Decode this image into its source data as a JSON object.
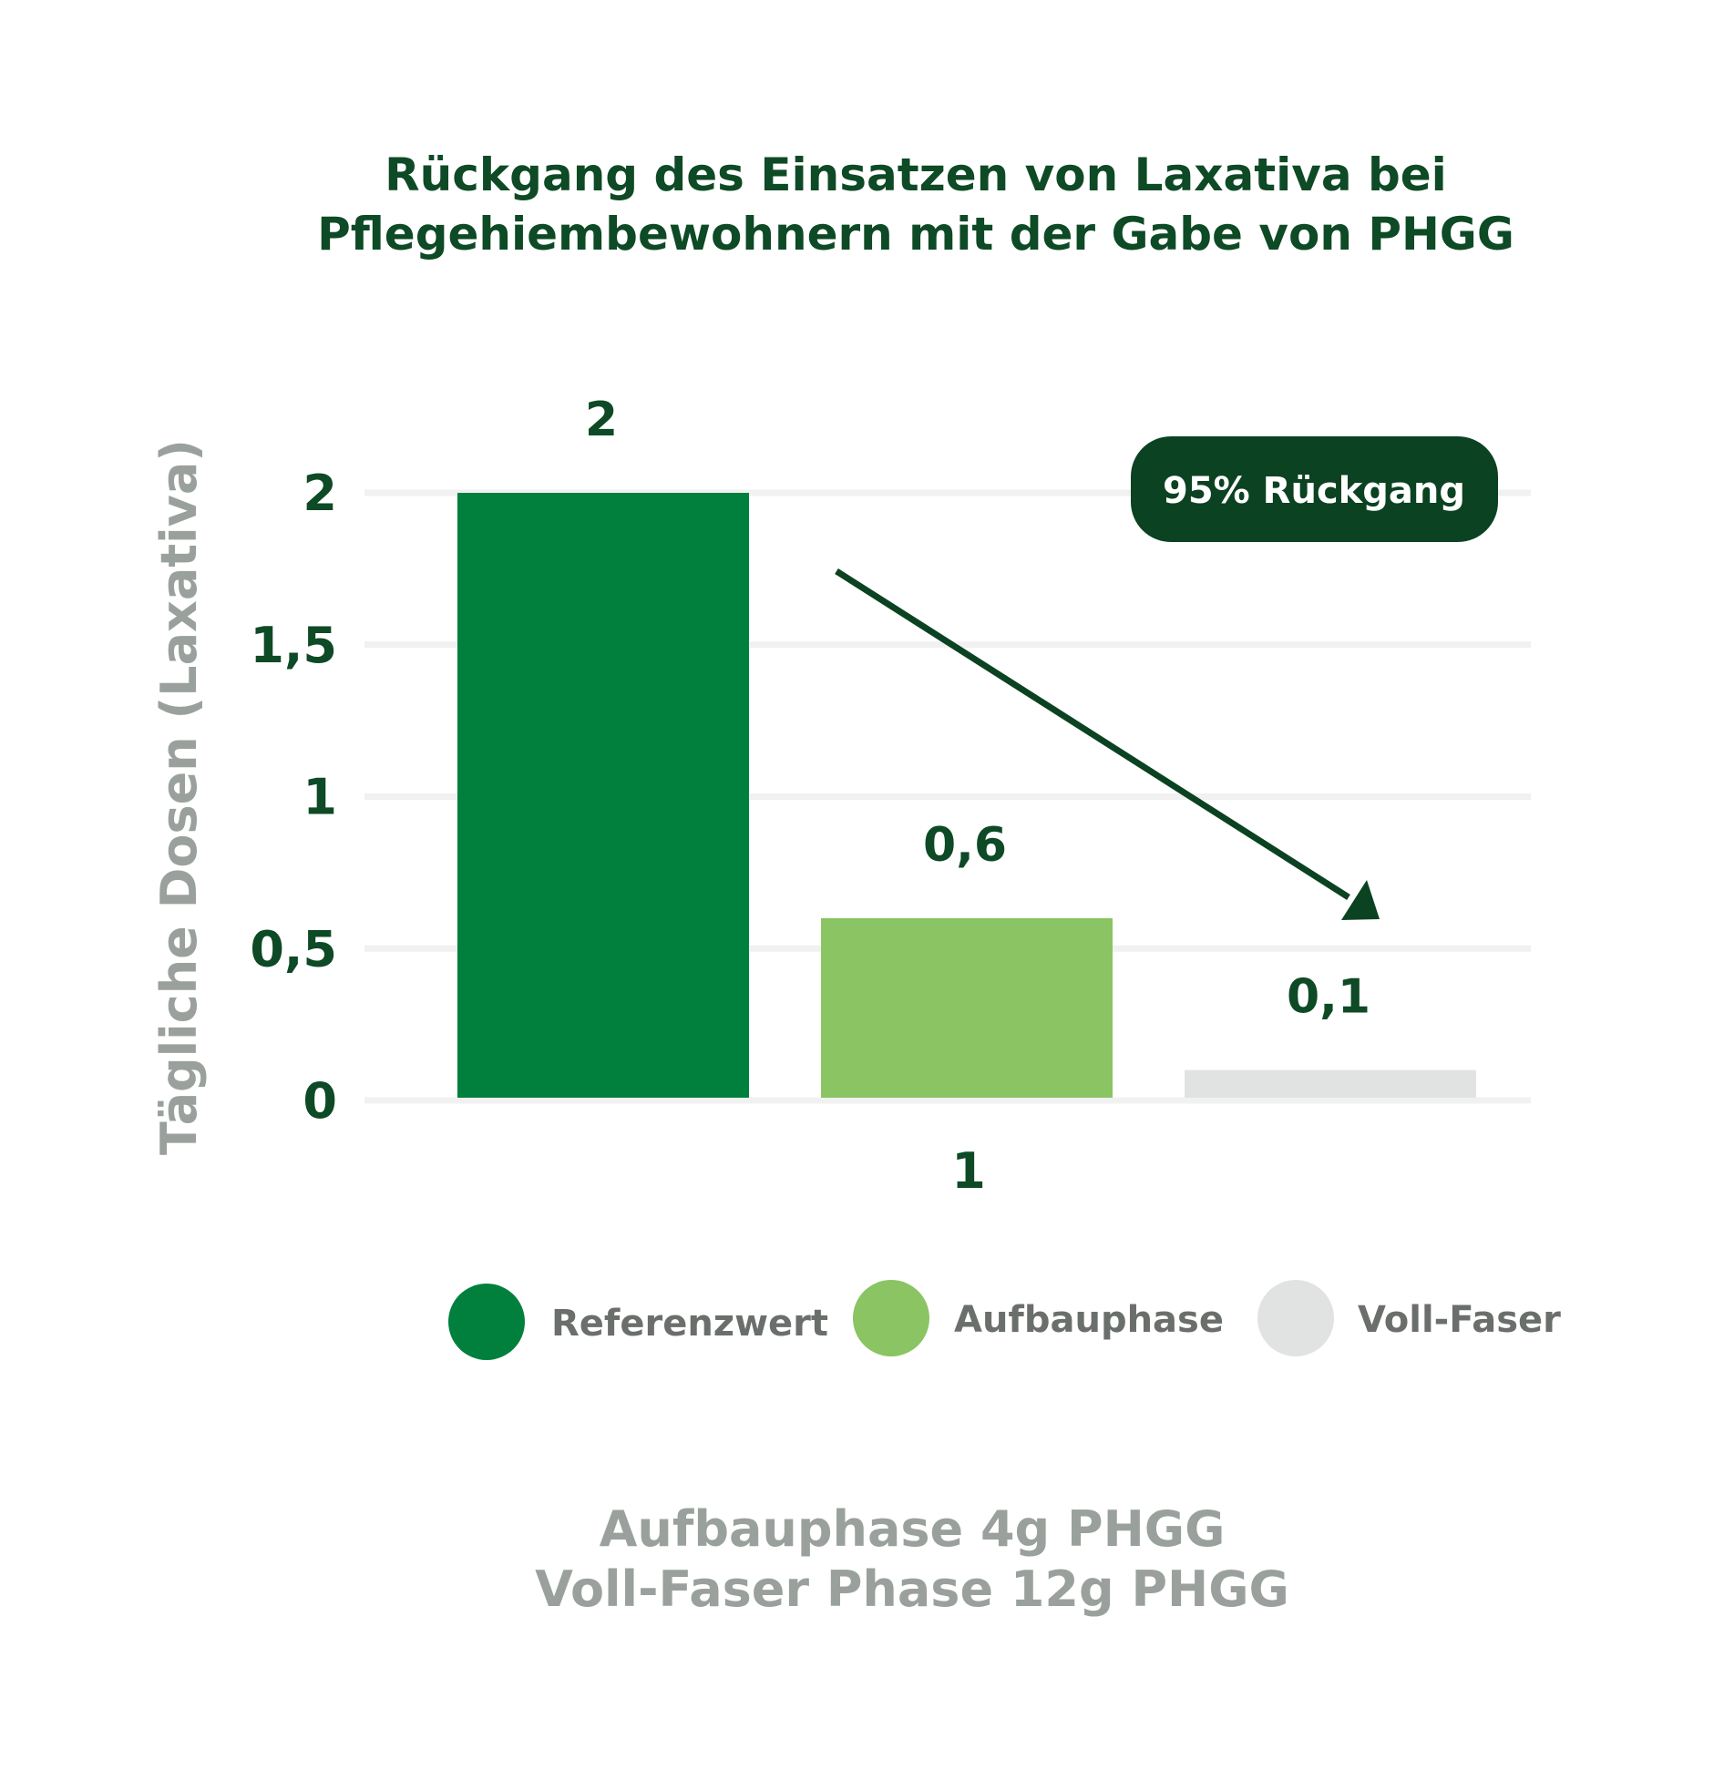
{
  "chart_data": {
    "type": "bar",
    "title_lines": [
      "Rückgang des Einsatzen von Laxativa bei",
      "Pflegehiembewohnern mit der Gabe von PHGG"
    ],
    "ylabel": "Tägliche Dosen (Laxativa)",
    "xlabel": "",
    "categories": [
      "1"
    ],
    "ylim": [
      0,
      2
    ],
    "y_ticks": [
      0,
      0.5,
      1,
      1.5,
      2
    ],
    "y_tick_labels": [
      "0",
      "0,5",
      "1",
      "1,5",
      "2"
    ],
    "grid": true,
    "series": [
      {
        "name": "Referenzwert",
        "values": [
          2
        ],
        "value_label": "2",
        "color": "#00803c"
      },
      {
        "name": "Aufbauphase",
        "values": [
          0.6
        ],
        "value_label": "0,6",
        "color": "#8ac463"
      },
      {
        "name": "Voll-Faser",
        "values": [
          0.1
        ],
        "value_label": "0,1",
        "color": "#e1e3e2"
      }
    ],
    "legend_position": "bottom",
    "annotation": {
      "text": "95% Rückgang",
      "badge_color": "#0b4222",
      "arrow": "down-right from Referenzwert toward Voll-Faser"
    },
    "footnote_lines": [
      "Aufbauphase 4g PHGG",
      "Voll-Faser Phase 12g PHGG"
    ]
  },
  "colors": {
    "title": "#0d4a25",
    "axis_text": "#0d4a25",
    "ylabel": "#9aa19c",
    "legend_text": "#6b6f6c",
    "footnote": "#9aa19c",
    "gridline": "#f1f1f1",
    "arrow": "#0b4222"
  }
}
